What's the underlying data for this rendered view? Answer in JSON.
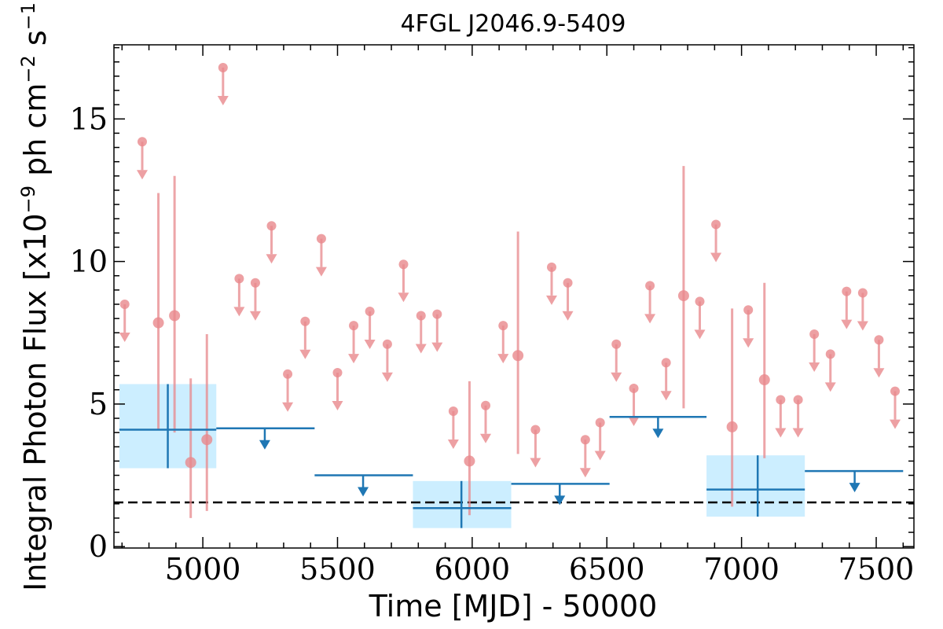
{
  "chart_data": {
    "type": "scatter",
    "title": "4FGL J2046.9-5409",
    "xlabel": "Time [MJD] - 50000",
    "ylabel_main": "Integral Photon Flux [x10",
    "ylabel_exp": "−9",
    "ylabel_units": " ph cm",
    "ylabel_exp2": "−2",
    "ylabel_s": " s",
    "ylabel_exp3": "−1",
    "ylabel_close": "]",
    "xlim": [
      4670,
      7640
    ],
    "ylim": [
      -0.05,
      17.6
    ],
    "x_ticks": [
      5000,
      5500,
      6000,
      6500,
      7000,
      7500
    ],
    "y_ticks": [
      0,
      5,
      10,
      15
    ],
    "baseline": 1.55,
    "colors": {
      "short_bins": "#e8888c",
      "long_bins": "#1f77b4",
      "long_bins_band": "#cceeff",
      "baseline": "#000000"
    },
    "short_bins_points": [
      {
        "x": 4835,
        "y": 7.85,
        "lo": 4.1,
        "hi": 12.4
      },
      {
        "x": 4895,
        "y": 8.1,
        "lo": 4.0,
        "hi": 13.0
      },
      {
        "x": 4955,
        "y": 2.95,
        "lo": 1.0,
        "hi": 5.9
      },
      {
        "x": 5015,
        "y": 3.75,
        "lo": 1.25,
        "hi": 7.45
      },
      {
        "x": 5990,
        "y": 3.0,
        "lo": 1.1,
        "hi": 5.8
      },
      {
        "x": 6170,
        "y": 6.7,
        "lo": 3.25,
        "hi": 11.05
      },
      {
        "x": 6785,
        "y": 8.8,
        "lo": 4.85,
        "hi": 13.35
      },
      {
        "x": 6965,
        "y": 4.2,
        "lo": 1.4,
        "hi": 8.35
      },
      {
        "x": 7085,
        "y": 5.85,
        "lo": 3.1,
        "hi": 9.25
      }
    ],
    "short_bins_upper_limits": [
      {
        "x": 4710,
        "y": 8.5
      },
      {
        "x": 4775,
        "y": 14.2
      },
      {
        "x": 5075,
        "y": 16.8
      },
      {
        "x": 5135,
        "y": 9.4
      },
      {
        "x": 5195,
        "y": 9.25
      },
      {
        "x": 5255,
        "y": 11.25
      },
      {
        "x": 5315,
        "y": 6.05
      },
      {
        "x": 5380,
        "y": 7.9
      },
      {
        "x": 5440,
        "y": 10.8
      },
      {
        "x": 5500,
        "y": 6.1
      },
      {
        "x": 5560,
        "y": 7.75
      },
      {
        "x": 5620,
        "y": 8.25
      },
      {
        "x": 5685,
        "y": 7.1
      },
      {
        "x": 5745,
        "y": 9.9
      },
      {
        "x": 5810,
        "y": 8.1
      },
      {
        "x": 5870,
        "y": 8.15
      },
      {
        "x": 5930,
        "y": 4.75
      },
      {
        "x": 6050,
        "y": 4.95
      },
      {
        "x": 6115,
        "y": 7.75
      },
      {
        "x": 6235,
        "y": 4.1
      },
      {
        "x": 6295,
        "y": 9.8
      },
      {
        "x": 6355,
        "y": 9.25
      },
      {
        "x": 6420,
        "y": 3.75
      },
      {
        "x": 6475,
        "y": 4.35
      },
      {
        "x": 6535,
        "y": 7.1
      },
      {
        "x": 6600,
        "y": 5.55
      },
      {
        "x": 6660,
        "y": 9.15
      },
      {
        "x": 6720,
        "y": 6.45
      },
      {
        "x": 6845,
        "y": 8.6
      },
      {
        "x": 6905,
        "y": 11.3
      },
      {
        "x": 7025,
        "y": 8.3
      },
      {
        "x": 7145,
        "y": 5.15
      },
      {
        "x": 7210,
        "y": 5.15
      },
      {
        "x": 7270,
        "y": 7.45
      },
      {
        "x": 7330,
        "y": 6.75
      },
      {
        "x": 7390,
        "y": 8.95
      },
      {
        "x": 7450,
        "y": 8.9
      },
      {
        "x": 7510,
        "y": 7.25
      },
      {
        "x": 7570,
        "y": 5.45
      }
    ],
    "long_bins_points": [
      {
        "x": 4870,
        "x_lo": 4690,
        "x_hi": 5050,
        "y": 4.1,
        "lo": 2.75,
        "hi": 5.7
      },
      {
        "x": 5960,
        "x_lo": 5780,
        "x_hi": 6145,
        "y": 1.35,
        "lo": 0.65,
        "hi": 2.3
      },
      {
        "x": 7060,
        "x_lo": 6870,
        "x_hi": 7235,
        "y": 2.0,
        "lo": 1.05,
        "hi": 3.2
      }
    ],
    "long_bins_upper_limits": [
      {
        "x_lo": 5050,
        "x_hi": 5415,
        "x": 5230,
        "y": 4.15
      },
      {
        "x_lo": 5415,
        "x_hi": 5780,
        "x": 5595,
        "y": 2.5
      },
      {
        "x_lo": 6145,
        "x_hi": 6510,
        "x": 6325,
        "y": 2.2
      },
      {
        "x_lo": 6510,
        "x_hi": 6870,
        "x": 6690,
        "y": 4.55
      },
      {
        "x_lo": 7235,
        "x_hi": 7600,
        "x": 7420,
        "y": 2.65
      }
    ]
  }
}
